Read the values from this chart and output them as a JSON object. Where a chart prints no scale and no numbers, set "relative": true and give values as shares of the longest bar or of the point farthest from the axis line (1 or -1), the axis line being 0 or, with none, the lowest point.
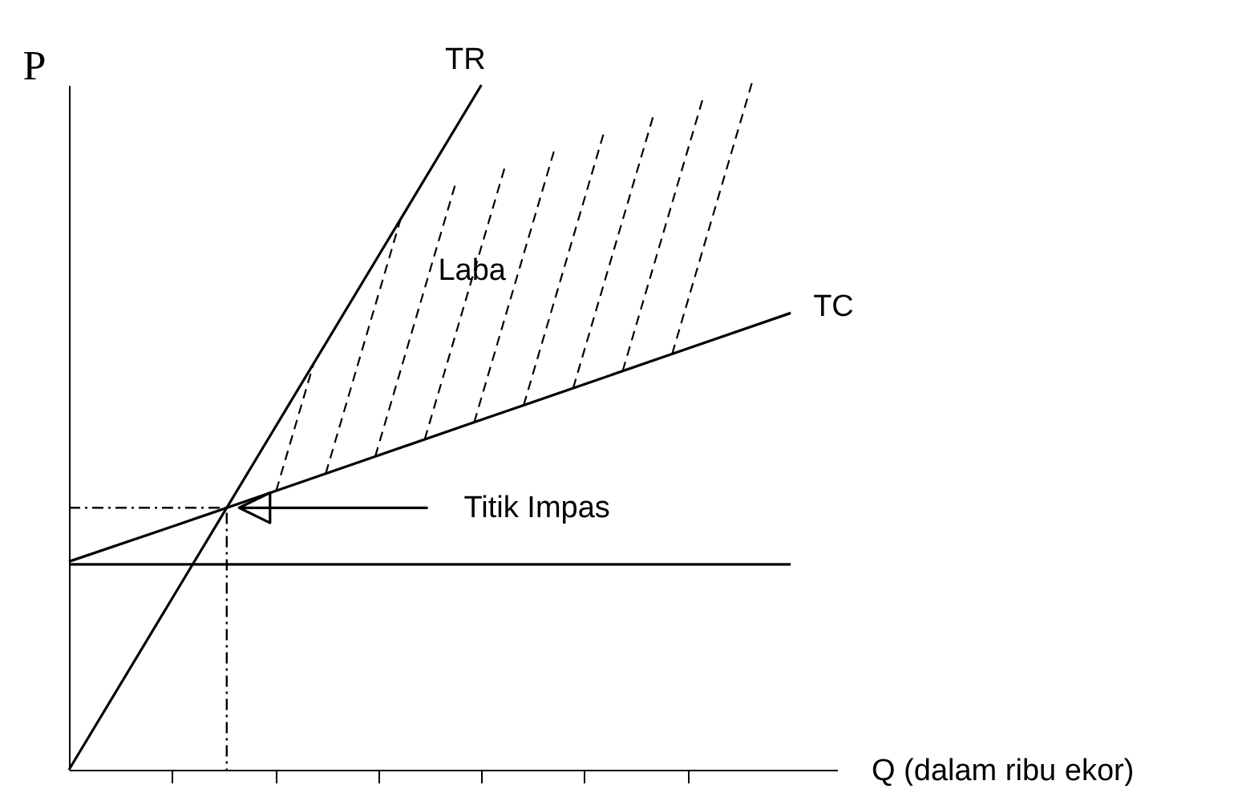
{
  "chart_data": {
    "type": "line",
    "relative": true,
    "xlabel": "Q (dalam ribu ekor)",
    "ylabel": "P",
    "categories": [
      null,
      null,
      null,
      null,
      null,
      null,
      null,
      null
    ],
    "series": [
      {
        "name": "TR",
        "color": "#000000",
        "values": [
          0,
          0.25,
          0.5,
          0.75,
          1,
          null,
          null,
          null
        ]
      },
      {
        "name": "TC",
        "color": "#000000",
        "values": [
          0.304,
          0.355,
          0.407,
          0.459,
          0.511,
          0.563,
          0.615,
          0.667
        ]
      },
      {
        "color": "#000000",
        "values": [
          0.3,
          0.3,
          0.3,
          0.3,
          0.3,
          0.3,
          0.3,
          0.3
        ]
      }
    ],
    "annotations": [
      "Titik Impas",
      "Laba"
    ]
  }
}
